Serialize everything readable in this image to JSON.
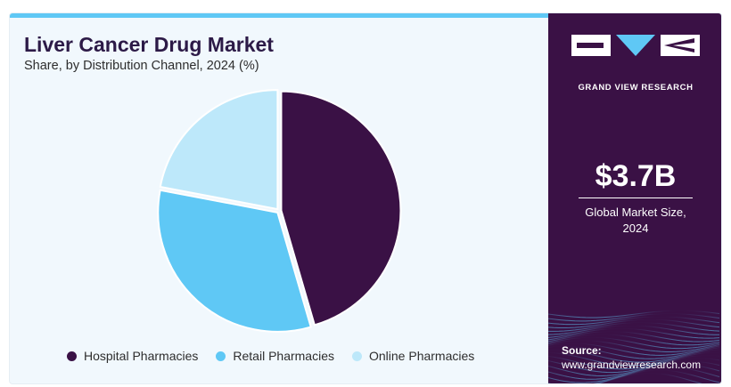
{
  "chart_data": {
    "type": "pie",
    "title": "Liver Cancer Drug Market",
    "subtitle": "Share, by Distribution Channel, 2024 (%)",
    "categories": [
      "Hospital Pharmacies",
      "Retail Pharmacies",
      "Online Pharmacies"
    ],
    "values": [
      45.5,
      32.5,
      22.0
    ],
    "colors": [
      "#3a1145",
      "#5fc8f5",
      "#bde8fa"
    ],
    "legend": "bottom",
    "exploded": true
  },
  "side_panel": {
    "brand": "GRAND VIEW RESEARCH",
    "market_value": "$3.7B",
    "market_label_line1": "Global Market Size,",
    "market_label_line2": "2024",
    "source_label": "Source:",
    "source_url": "www.grandviewresearch.com"
  },
  "colors": {
    "panel_bg": "#3a1145",
    "accent": "#5fc8f5",
    "card_bg": "#f1f8fd"
  }
}
